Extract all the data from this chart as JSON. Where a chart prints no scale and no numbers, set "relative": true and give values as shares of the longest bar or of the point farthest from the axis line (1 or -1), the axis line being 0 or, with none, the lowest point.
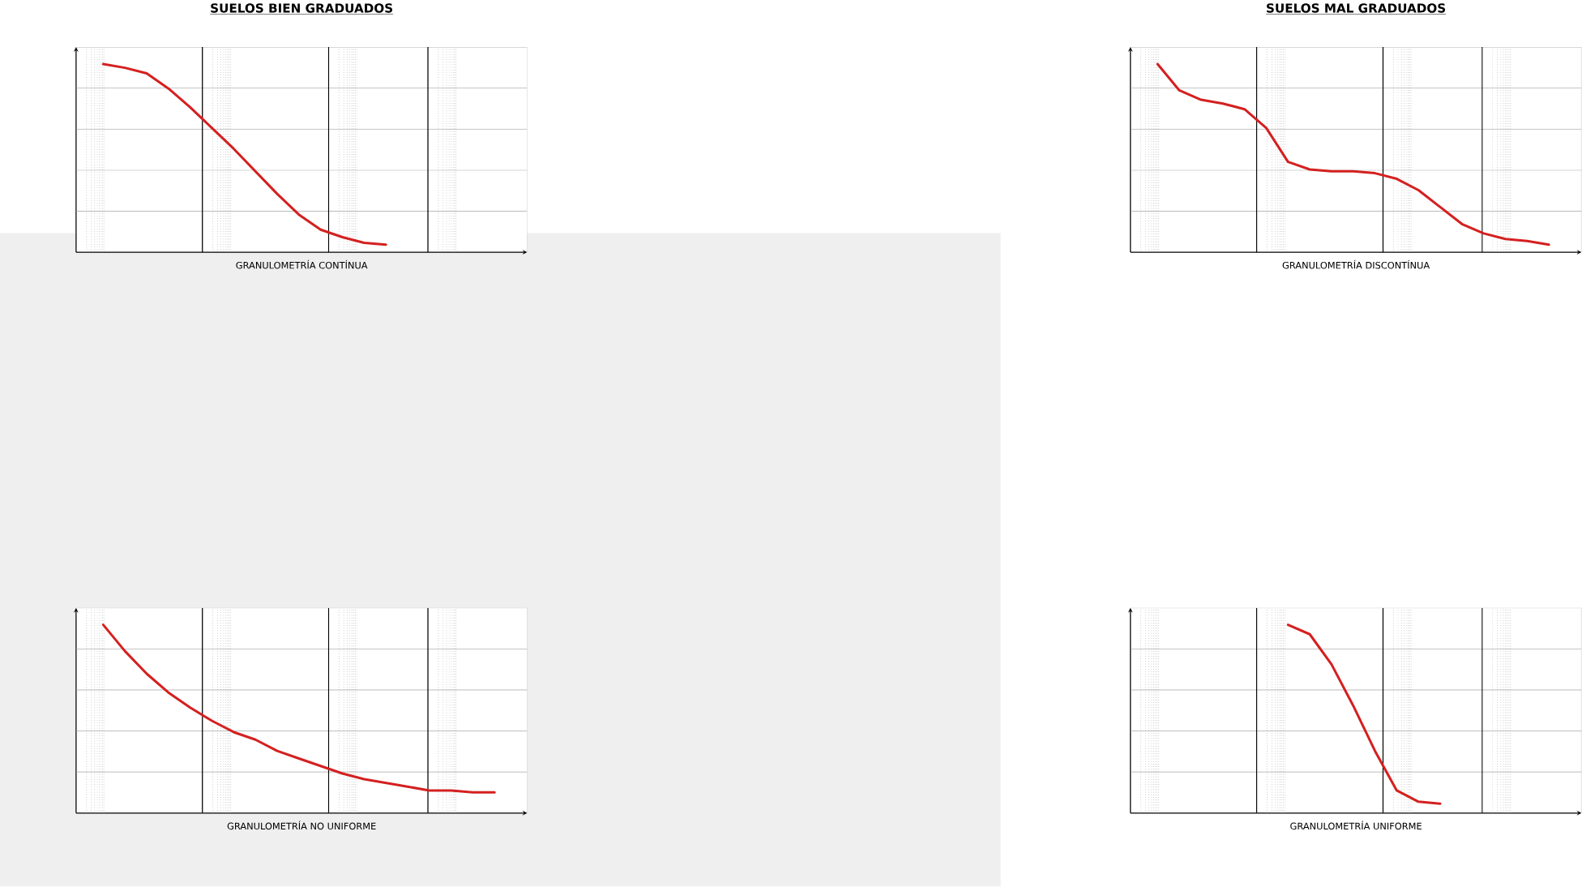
{
  "chart_data": [
    {
      "type": "line",
      "title": "SUELOS BIEN GRADUADOS",
      "xlabel": "GRANULOMETRÍA CONTÍNUA",
      "relative": true,
      "grid": true,
      "marker": "none",
      "categories": [
        null,
        null,
        null,
        null,
        null,
        null,
        null,
        null,
        null,
        null,
        null,
        null,
        null,
        null,
        null,
        null,
        null,
        null,
        null,
        null,
        null
      ],
      "series": [
        {
          "color": "#d42020",
          "values": [
            null,
            1.0,
            0.98,
            0.95,
            0.87,
            0.77,
            0.66,
            0.55,
            0.43,
            0.31,
            0.2,
            0.12,
            0.08,
            0.05,
            0.04,
            null,
            null,
            null,
            null,
            null,
            null
          ]
        }
      ]
    },
    {
      "type": "line",
      "title": "SUELOS MAL GRADUADOS",
      "xlabel": "GRANULOMETRÍA DISCONTÍNUA",
      "relative": true,
      "grid": true,
      "marker": "none",
      "categories": [
        null,
        null,
        null,
        null,
        null,
        null,
        null,
        null,
        null,
        null,
        null,
        null,
        null,
        null,
        null,
        null,
        null,
        null,
        null,
        null,
        null
      ],
      "series": [
        {
          "color": "#d42020",
          "values": [
            null,
            1.0,
            0.86,
            0.81,
            0.79,
            0.76,
            0.66,
            0.48,
            0.44,
            0.43,
            0.43,
            0.42,
            0.39,
            0.33,
            0.24,
            0.15,
            0.1,
            0.07,
            0.06,
            0.04,
            null
          ]
        }
      ]
    },
    {
      "type": "line",
      "xlabel": "GRANULOMETRÍA NO UNIFORME",
      "relative": true,
      "grid": true,
      "marker": "none",
      "categories": [
        null,
        null,
        null,
        null,
        null,
        null,
        null,
        null,
        null,
        null,
        null,
        null,
        null,
        null,
        null,
        null,
        null,
        null,
        null,
        null,
        null
      ],
      "series": [
        {
          "color": "#d42020",
          "values": [
            null,
            1.0,
            0.86,
            0.74,
            0.64,
            0.56,
            0.49,
            0.43,
            0.39,
            0.33,
            0.29,
            0.25,
            0.21,
            0.18,
            0.16,
            0.14,
            0.12,
            0.12,
            0.11,
            0.11,
            null
          ]
        }
      ]
    },
    {
      "type": "line",
      "xlabel": "GRANULOMETRÍA UNIFORME",
      "relative": true,
      "grid": true,
      "marker": "none",
      "categories": [
        null,
        null,
        null,
        null,
        null,
        null,
        null,
        null,
        null,
        null,
        null,
        null,
        null,
        null,
        null,
        null,
        null,
        null,
        null,
        null,
        null
      ],
      "series": [
        {
          "color": "#d42020",
          "values": [
            null,
            null,
            null,
            null,
            null,
            null,
            null,
            1.0,
            0.95,
            0.79,
            0.57,
            0.33,
            0.12,
            0.06,
            0.05,
            null,
            null,
            null,
            null,
            null,
            null
          ]
        }
      ]
    }
  ]
}
